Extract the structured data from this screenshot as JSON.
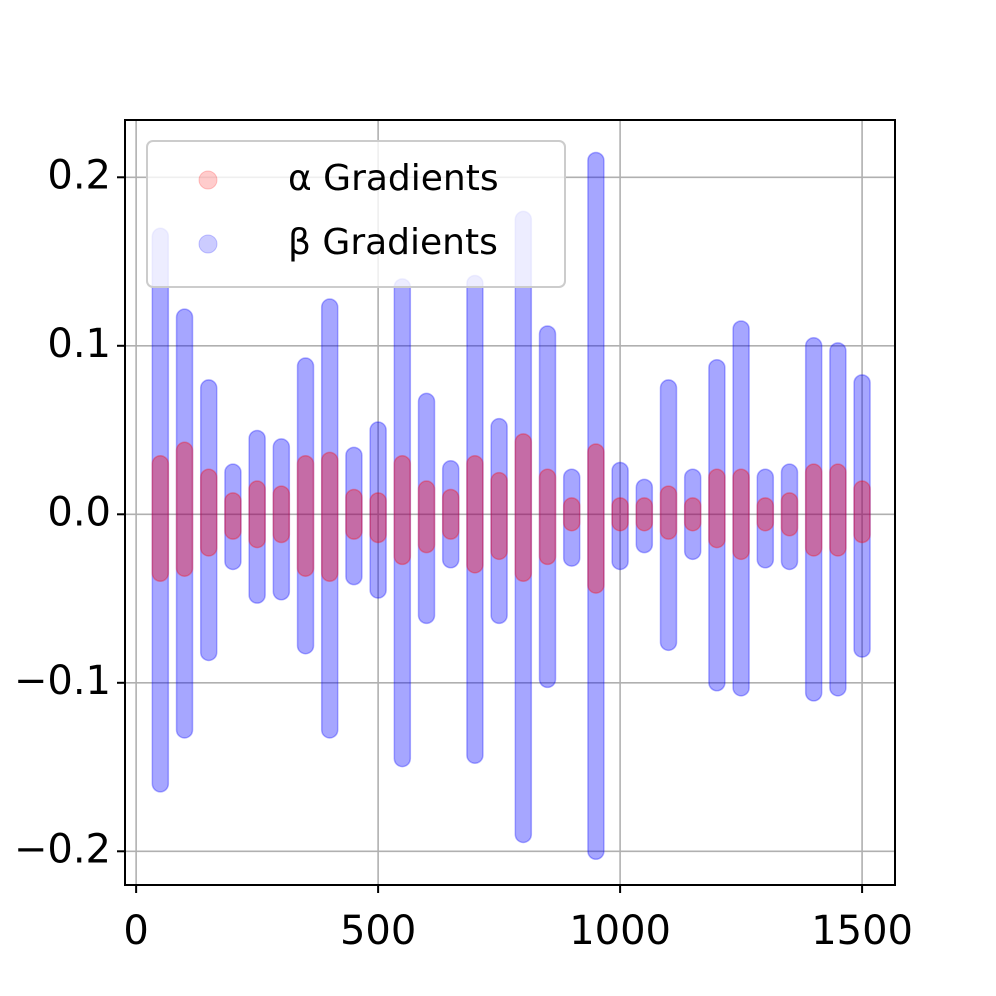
{
  "chart_data": {
    "type": "scatter",
    "x": [
      50,
      100,
      150,
      200,
      250,
      300,
      350,
      400,
      450,
      500,
      550,
      600,
      650,
      700,
      750,
      800,
      850,
      900,
      950,
      1000,
      1050,
      1100,
      1150,
      1200,
      1250,
      1300,
      1350,
      1400,
      1450,
      1500
    ],
    "series": [
      {
        "name": "α Gradients",
        "color": "#ff0000",
        "ymin": [
          -0.035,
          -0.032,
          -0.02,
          -0.01,
          -0.015,
          -0.012,
          -0.032,
          -0.035,
          -0.01,
          -0.012,
          -0.025,
          -0.018,
          -0.01,
          -0.03,
          -0.022,
          -0.035,
          -0.025,
          -0.005,
          -0.042,
          -0.005,
          -0.005,
          -0.01,
          -0.005,
          -0.015,
          -0.022,
          -0.005,
          -0.008,
          -0.02,
          -0.02,
          -0.012
        ],
        "ymax": [
          0.03,
          0.038,
          0.022,
          0.008,
          0.015,
          0.012,
          0.03,
          0.032,
          0.01,
          0.008,
          0.03,
          0.015,
          0.01,
          0.03,
          0.02,
          0.043,
          0.022,
          0.005,
          0.037,
          0.005,
          0.005,
          0.012,
          0.005,
          0.022,
          0.022,
          0.005,
          0.008,
          0.025,
          0.025,
          0.015
        ]
      },
      {
        "name": "β Gradients",
        "color": "#0000ff",
        "ymin": [
          -0.16,
          -0.128,
          -0.082,
          -0.028,
          -0.048,
          -0.046,
          -0.078,
          -0.128,
          -0.037,
          -0.045,
          -0.145,
          -0.06,
          -0.027,
          -0.143,
          -0.06,
          -0.19,
          -0.098,
          -0.026,
          -0.2,
          -0.028,
          -0.018,
          -0.076,
          -0.022,
          -0.1,
          -0.103,
          -0.027,
          -0.028,
          -0.106,
          -0.103,
          -0.08
        ],
        "ymax": [
          0.165,
          0.117,
          0.075,
          0.025,
          0.045,
          0.04,
          0.088,
          0.123,
          0.035,
          0.05,
          0.135,
          0.067,
          0.027,
          0.137,
          0.052,
          0.175,
          0.107,
          0.022,
          0.21,
          0.026,
          0.016,
          0.075,
          0.022,
          0.087,
          0.11,
          0.022,
          0.025,
          0.1,
          0.097,
          0.078
        ]
      }
    ],
    "xlim": [
      -23,
      1568
    ],
    "ylim": [
      -0.22,
      0.234
    ],
    "xticks": [
      0,
      500,
      1000,
      1500
    ],
    "yticks": [
      {
        "value": -0.2,
        "label": "−0.2"
      },
      {
        "value": -0.1,
        "label": "−0.1"
      },
      {
        "value": 0,
        "label": "0.0"
      },
      0.1,
      0.2
    ],
    "grid": true,
    "legend": "upper left"
  }
}
